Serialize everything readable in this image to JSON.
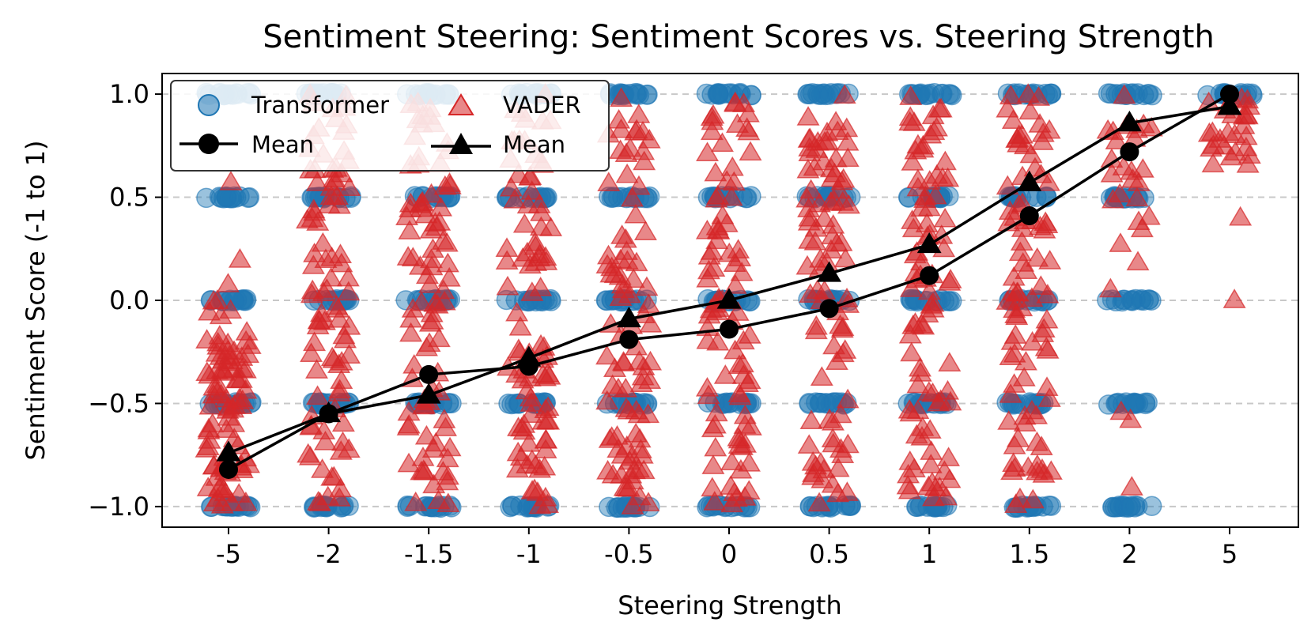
{
  "chart_data": {
    "type": "scatter",
    "title": "Sentiment Steering: Sentiment Scores vs. Steering Strength",
    "xlabel": "Steering Strength",
    "ylabel": "Sentiment Score (-1 to 1)",
    "categories": [
      "-5",
      "-2",
      "-1.5",
      "-1",
      "-0.5",
      "0",
      "0.5",
      "1",
      "1.5",
      "2",
      "5"
    ],
    "ylim": [
      -1.1,
      1.1
    ],
    "yticks": [
      1.0,
      0.5,
      0.0,
      -0.5,
      -1.0
    ],
    "ytick_labels": [
      "1.0",
      "0.5",
      "0.0",
      "−0.5",
      "−1.0"
    ],
    "grid": "horizontal dashed",
    "legend": {
      "placement": "upper-left",
      "entries": [
        "Transformer",
        "VADER",
        "Mean",
        "Mean"
      ]
    },
    "series": [
      {
        "name": "Transformer",
        "kind": "scatter",
        "marker": "circle",
        "color": "#1f77b4",
        "levels": [
          [
            1.0,
            0.5,
            0.0,
            -0.5,
            -1.0
          ],
          [
            1.0,
            0.5,
            0.0,
            -0.5,
            -1.0
          ],
          [
            1.0,
            0.5,
            0.0,
            -0.5,
            -1.0
          ],
          [
            1.0,
            0.5,
            0.0,
            -0.5,
            -1.0
          ],
          [
            1.0,
            0.5,
            0.0,
            -0.5,
            -1.0
          ],
          [
            1.0,
            0.5,
            0.0,
            -0.5,
            -1.0
          ],
          [
            1.0,
            0.5,
            0.0,
            -0.5,
            -1.0
          ],
          [
            1.0,
            0.5,
            0.0,
            -0.5,
            -1.0
          ],
          [
            1.0,
            0.5,
            0.0,
            -0.5,
            -1.0
          ],
          [
            1.0,
            0.5,
            0.0,
            -0.5,
            -1.0
          ],
          [
            1.0
          ]
        ]
      },
      {
        "name": "VADER",
        "kind": "scatter",
        "marker": "triangle",
        "color": "#d62728",
        "ranges": [
          [
            -1.0,
            0.6
          ],
          [
            -1.0,
            1.0
          ],
          [
            -1.0,
            1.0
          ],
          [
            -1.0,
            1.0
          ],
          [
            -1.0,
            1.0
          ],
          [
            -1.0,
            1.0
          ],
          [
            -1.0,
            1.0
          ],
          [
            -1.0,
            1.0
          ],
          [
            -1.0,
            1.0
          ],
          [
            -0.95,
            1.0
          ],
          [
            0.0,
            1.0
          ]
        ]
      },
      {
        "name": "Mean",
        "of": "Transformer",
        "kind": "line",
        "marker": "circle",
        "color": "#000000",
        "values": [
          -0.82,
          -0.55,
          -0.36,
          -0.32,
          -0.19,
          -0.14,
          -0.04,
          0.12,
          0.41,
          0.72,
          1.0
        ]
      },
      {
        "name": "Mean",
        "of": "VADER",
        "kind": "line",
        "marker": "triangle",
        "color": "#000000",
        "values": [
          -0.74,
          -0.55,
          -0.46,
          -0.28,
          -0.09,
          0.0,
          0.13,
          0.27,
          0.57,
          0.86,
          0.94
        ]
      }
    ]
  }
}
